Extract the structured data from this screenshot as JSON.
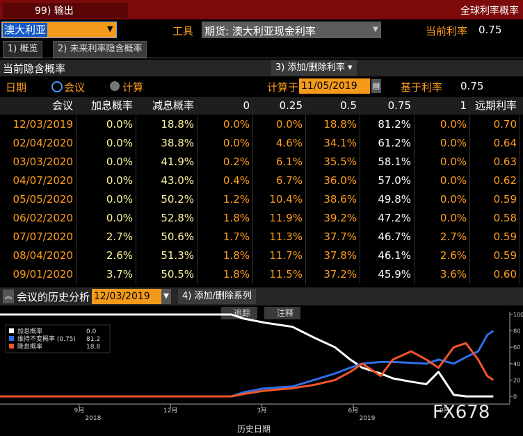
{
  "header": {
    "export_button": "99) 输出",
    "title": "全球利率概率"
  },
  "controls": {
    "country": "澳大利亚",
    "instrument_label": "工具",
    "instrument": "期货: 澳大利亚现金利率",
    "current_rate_label": "当前利率",
    "current_rate": "0.75"
  },
  "tabs": [
    "1) 概览",
    "2) 未来利率隐含概率"
  ],
  "section": {
    "title": "当前隐含概率",
    "add_remove_rate": "3) 添加/删除利率 ▾"
  },
  "options": {
    "date_label": "日期",
    "radio_meeting": "会议",
    "radio_calc": "计算",
    "calc_on_label": "计算于",
    "calc_on": "11/05/2019",
    "based_rate_label": "基于利率",
    "based_rate": "0.75"
  },
  "table": {
    "columns": [
      "会议",
      "加息概率",
      "减息概率",
      "0",
      "0.25",
      "0.5",
      "0.75",
      "1",
      "远期利率"
    ],
    "rows": [
      [
        "12/03/2019",
        "0.0%",
        "18.8%",
        "0.0%",
        "0.0%",
        "18.8%",
        "81.2%",
        "0.0%",
        "0.70"
      ],
      [
        "02/04/2020",
        "0.0%",
        "38.8%",
        "0.0%",
        "4.6%",
        "34.1%",
        "61.2%",
        "0.0%",
        "0.64"
      ],
      [
        "03/03/2020",
        "0.0%",
        "41.9%",
        "0.2%",
        "6.1%",
        "35.5%",
        "58.1%",
        "0.0%",
        "0.63"
      ],
      [
        "04/07/2020",
        "0.0%",
        "43.0%",
        "0.4%",
        "6.7%",
        "36.0%",
        "57.0%",
        "0.0%",
        "0.62"
      ],
      [
        "05/05/2020",
        "0.0%",
        "50.2%",
        "1.2%",
        "10.4%",
        "38.6%",
        "49.8%",
        "0.0%",
        "0.59"
      ],
      [
        "06/02/2020",
        "0.0%",
        "52.8%",
        "1.8%",
        "11.9%",
        "39.2%",
        "47.2%",
        "0.0%",
        "0.58"
      ],
      [
        "07/07/2020",
        "2.7%",
        "50.6%",
        "1.7%",
        "11.3%",
        "37.7%",
        "46.7%",
        "2.7%",
        "0.59"
      ],
      [
        "08/04/2020",
        "2.6%",
        "51.3%",
        "1.8%",
        "11.7%",
        "37.8%",
        "46.1%",
        "2.6%",
        "0.59"
      ],
      [
        "09/01/2020",
        "3.7%",
        "50.5%",
        "1.8%",
        "11.5%",
        "37.2%",
        "45.9%",
        "3.6%",
        "0.60"
      ]
    ]
  },
  "history": {
    "title": "会议的历史分析",
    "meeting": "12/03/2019",
    "add_remove_series": "4) 添加/删除系列",
    "track": "追踪",
    "annotate": "注释",
    "watermark": "FX678"
  },
  "chart_data": {
    "type": "line",
    "x_label": "历史日期",
    "x": [
      -2.6,
      5.0,
      5.4,
      6.1,
      7.0,
      7.7,
      8.4,
      8.9,
      9.3,
      9.9,
      10.3,
      10.9,
      11.4,
      11.8,
      12.3,
      12.7,
      13.1,
      13.4,
      13.6
    ],
    "xlim": [
      -2.6,
      14.3
    ],
    "xticks": [
      {
        "value": 0,
        "label": "9月"
      },
      {
        "value": 3,
        "label": "12月"
      },
      {
        "value": 6,
        "label": "3月"
      },
      {
        "value": 9,
        "label": "6月"
      },
      {
        "value": 12,
        "label": "9月"
      }
    ],
    "year_labels": [
      "2018",
      "2019"
    ],
    "ylim": [
      0,
      100
    ],
    "yticks": [
      0,
      20,
      40,
      60,
      80,
      100
    ],
    "series": [
      {
        "name": "加息概率",
        "legend_value": "0.0",
        "color": "#ffffff",
        "values": [
          100,
          100,
          95,
          90,
          85,
          72,
          60,
          45,
          35,
          28,
          22,
          18,
          15,
          30,
          2,
          0,
          0,
          0,
          0
        ]
      },
      {
        "name": "维持不变概率 (0.75)",
        "legend_value": "81.2",
        "color": "#2f6fe8",
        "values": [
          0,
          0,
          5,
          10,
          12,
          20,
          28,
          35,
          40,
          42,
          42,
          41,
          40,
          45,
          40,
          48,
          55,
          75,
          80
        ]
      },
      {
        "name": "降息概率",
        "legend_value": "18.8",
        "color": "#f0562a",
        "values": [
          0,
          0,
          3,
          7,
          10,
          14,
          20,
          30,
          40,
          25,
          45,
          55,
          45,
          35,
          60,
          65,
          45,
          25,
          20
        ]
      }
    ]
  }
}
